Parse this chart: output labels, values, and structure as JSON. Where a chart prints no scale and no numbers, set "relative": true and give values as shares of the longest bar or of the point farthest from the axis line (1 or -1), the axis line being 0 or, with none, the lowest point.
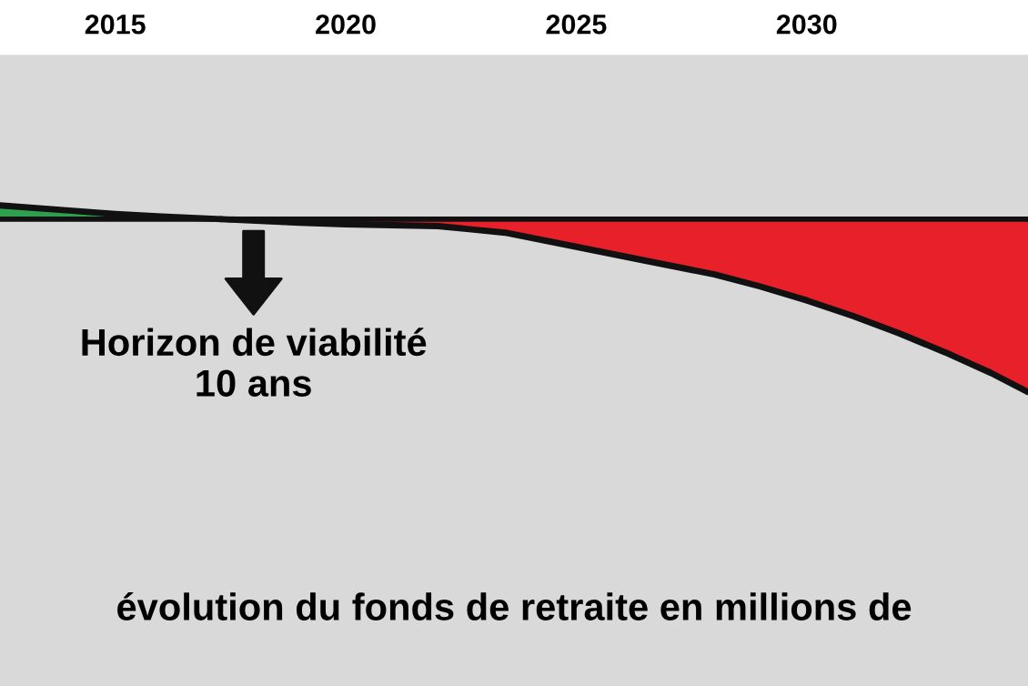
{
  "chart_data": {
    "type": "area",
    "relative": true,
    "xlim": [
      2012.5,
      2034.8
    ],
    "xticks": [
      2015,
      2020,
      2025,
      2030
    ],
    "series": [
      {
        "color": "#2e9e4f",
        "x": [
          2012.5,
          2014,
          2015,
          2016,
          2017.3
        ],
        "values": [
          0.08,
          0.05,
          0.03,
          0.015,
          0
        ]
      },
      {
        "color": "#e8202a",
        "x": [
          2017.3,
          2019,
          2020,
          2022,
          2023.5,
          2025,
          2026.5,
          2028,
          2029,
          2030,
          2031,
          2032,
          2033,
          2034,
          2034.8
        ],
        "values": [
          0,
          -0.02,
          -0.03,
          -0.04,
          -0.08,
          -0.16,
          -0.24,
          -0.32,
          -0.39,
          -0.47,
          -0.56,
          -0.66,
          -0.77,
          -0.89,
          -1
        ]
      }
    ],
    "annotations": [
      {
        "text": "Horizon de viabilité\n10 ans",
        "x": 2018,
        "y": -0.02
      },
      "évolution du fonds de retraite en millions de"
    ],
    "grid": false
  }
}
